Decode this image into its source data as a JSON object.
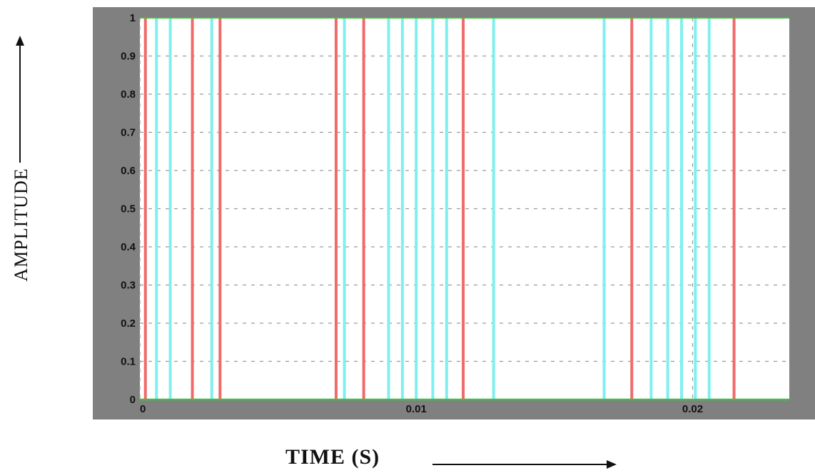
{
  "chart_data": {
    "type": "line",
    "title": "",
    "xlabel": "TIME  (S)",
    "ylabel": "AMPLITUDE",
    "xlim": [
      0,
      0.0235
    ],
    "ylim": [
      0,
      1
    ],
    "x_ticks": [
      0,
      0.01,
      0.02
    ],
    "x_tick_labels": [
      "0",
      "0.01",
      "0.02"
    ],
    "y_ticks": [
      0,
      0.1,
      0.2,
      0.3,
      0.4,
      0.5,
      0.6,
      0.7,
      0.8,
      0.9,
      1
    ],
    "y_tick_labels": [
      "0",
      "0.1",
      "0.2",
      "0.3",
      "0.4",
      "0.5",
      "0.6",
      "0.7",
      "0.8",
      "0.9",
      "1"
    ],
    "grid": true,
    "series": [
      {
        "color": "#f06a6a",
        "x": [
          0.0002,
          0.0019,
          0.0029,
          0.0071,
          0.0081,
          0.0117,
          0.0178,
          0.0215
        ]
      },
      {
        "color": "#7fefef",
        "x": [
          0.0006,
          0.0011,
          0.0026,
          0.0074,
          0.009,
          0.0095,
          0.01,
          0.0106,
          0.0111,
          0.0128,
          0.0168,
          0.0185,
          0.0191,
          0.0196,
          0.0201,
          0.0206
        ]
      }
    ],
    "colors": {
      "frame": "#808080",
      "axes_bg": "#ffffff",
      "grid": "#9a9a9a",
      "baseline": "#40c040",
      "top_line": "#40c040"
    }
  }
}
